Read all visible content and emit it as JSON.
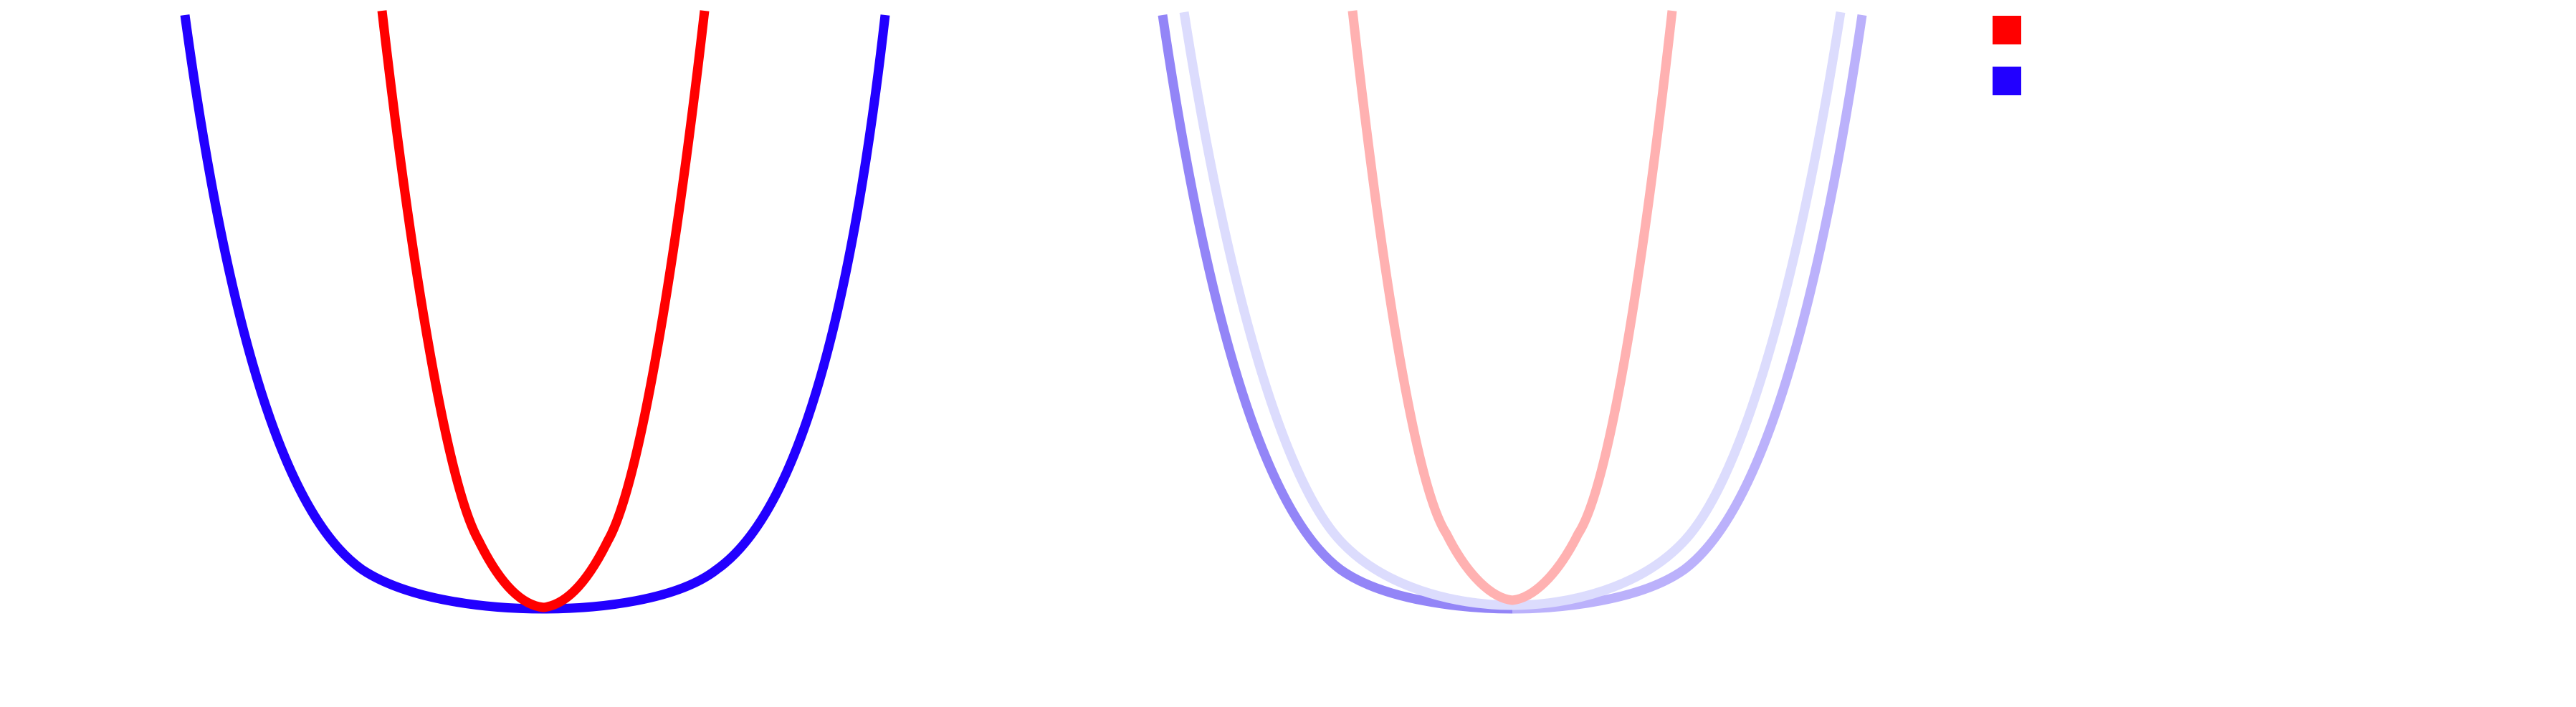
{
  "colors": {
    "red": "#ff0000",
    "blue": "#2200ff",
    "red_faded": "#ffb1b1",
    "blue_faded_strong": "#9385f7",
    "blue_faded_medium": "#bbb1fb",
    "blue_faded_light": "#dcdcfd"
  },
  "legend": {
    "items": [
      {
        "color": "#ff0000",
        "label": ""
      },
      {
        "color": "#2200ff",
        "label": ""
      }
    ]
  }
}
